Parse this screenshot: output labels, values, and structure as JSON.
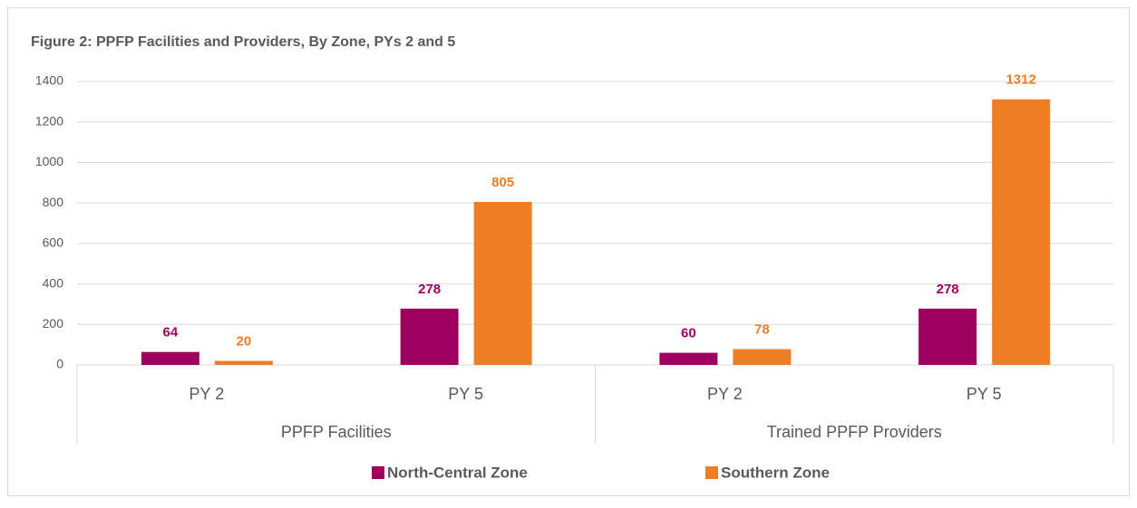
{
  "chart_data": {
    "type": "bar",
    "title": "Figure 2: PPFP Facilities and Providers, By Zone, PYs 2 and 5",
    "categories": [
      "PY 2",
      "PY 5",
      "PY 2",
      "PY 5"
    ],
    "groups": [
      "PPFP Facilities",
      "Trained PPFP Providers"
    ],
    "series": [
      {
        "name": "North-Central Zone",
        "color": "#9e005d",
        "values": [
          64,
          278,
          60,
          278
        ]
      },
      {
        "name": "Southern Zone",
        "color": "#ee7d26",
        "values": [
          20,
          805,
          78,
          1312
        ]
      }
    ],
    "ylim": [
      0,
      1400
    ],
    "yticks": [
      0,
      200,
      400,
      600,
      800,
      1000,
      1200,
      1400
    ],
    "grid": true,
    "legend": "bottom"
  }
}
